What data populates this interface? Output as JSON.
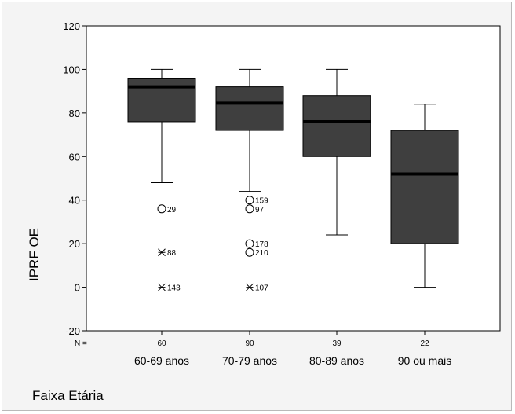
{
  "chart_data": {
    "type": "boxplot",
    "ylabel": "IPRF OE",
    "xlabel": "Faixa Etária",
    "ylim": [
      -20,
      120
    ],
    "yticks": [
      -20,
      0,
      20,
      40,
      60,
      80,
      100,
      120
    ],
    "n_label": "N =",
    "box_color": "#3f3f3f",
    "categories": [
      "60-69 anos",
      "70-79 anos",
      "80-89 anos",
      "90 ou mais"
    ],
    "n": [
      "60",
      "90",
      "39",
      "22"
    ],
    "boxes": [
      {
        "whisker_low": 48,
        "q1": 76,
        "median": 92,
        "q3": 96,
        "whisker_high": 100
      },
      {
        "whisker_low": 44,
        "q1": 72,
        "median": 84.5,
        "q3": 92,
        "whisker_high": 100
      },
      {
        "whisker_low": 24,
        "q1": 60,
        "median": 76,
        "q3": 88,
        "whisker_high": 100
      },
      {
        "whisker_low": 0,
        "q1": 20,
        "median": 52,
        "q3": 72,
        "whisker_high": 84
      }
    ],
    "outliers": [
      {
        "group": 0,
        "value": 36,
        "marker": "circle",
        "label": "29"
      },
      {
        "group": 0,
        "value": 16,
        "marker": "star",
        "label": "88"
      },
      {
        "group": 0,
        "value": 0,
        "marker": "star",
        "label": "143"
      },
      {
        "group": 1,
        "value": 40,
        "marker": "circle",
        "label": "159"
      },
      {
        "group": 1,
        "value": 36,
        "marker": "circle",
        "label": "97"
      },
      {
        "group": 1,
        "value": 20,
        "marker": "circle",
        "label": "178"
      },
      {
        "group": 1,
        "value": 16,
        "marker": "circle",
        "label": "210"
      },
      {
        "group": 1,
        "value": 0,
        "marker": "star",
        "label": "107"
      }
    ]
  }
}
